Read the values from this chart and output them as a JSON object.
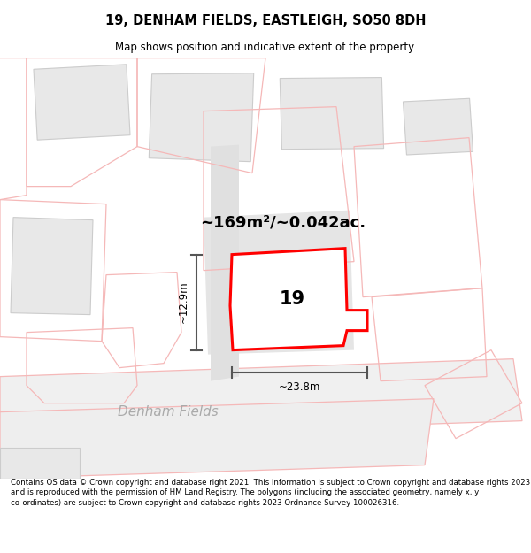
{
  "title": "19, DENHAM FIELDS, EASTLEIGH, SO50 8DH",
  "subtitle": "Map shows position and indicative extent of the property.",
  "footer": "Contains OS data © Crown copyright and database right 2021. This information is subject to Crown copyright and database rights 2023 and is reproduced with the permission of HM Land Registry. The polygons (including the associated geometry, namely x, y co-ordinates) are subject to Crown copyright and database rights 2023 Ordnance Survey 100026316.",
  "area_label": "~169m²/~0.042ac.",
  "width_label": "~23.8m",
  "height_label": "~12.9m",
  "plot_number": "19",
  "road_label": "Denham Fields",
  "bg_color": "#ffffff",
  "building_fill": "#e8e8e8",
  "building_edge": "#cccccc",
  "prop_boundary": "#f5b8b8",
  "plot_fill": "#ebebeb",
  "plot_outline": "#ff0000",
  "dim_color": "#555555",
  "road_text_color": "#aaaaaa",
  "title_fontsize": 10.5,
  "subtitle_fontsize": 8.5,
  "footer_fontsize": 6.2,
  "area_fontsize": 13,
  "number_fontsize": 15,
  "dim_fontsize": 8.5,
  "road_fontsize": 11
}
